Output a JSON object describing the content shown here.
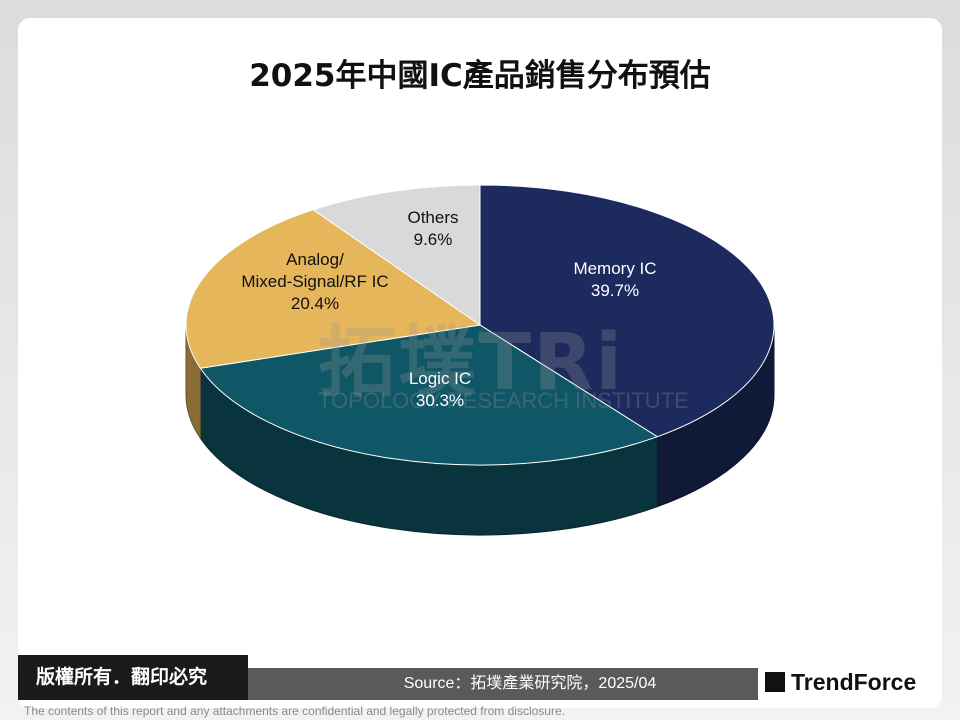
{
  "chart_data": {
    "type": "pie3d",
    "title": "2025年中國IC產品銷售分布預估",
    "categories": [
      "Memory IC",
      "Logic IC",
      "Analog/\nMixed-Signal/RF IC",
      "Others"
    ],
    "values": [
      39.7,
      30.3,
      20.4,
      9.6
    ],
    "value_labels": [
      "39.7%",
      "30.3%",
      "20.4%",
      "9.6%"
    ],
    "colors": [
      "#1c2a5e",
      "#0f5666",
      "#e6b65a",
      "#d9d9d9"
    ]
  },
  "watermark": {
    "logo": "拓墣TRi",
    "name": "TOPOLOGY RESEARCH INSTITUTE"
  },
  "footer": {
    "copyright": "版權所有．翻印必究",
    "source": "Source：拓墣產業研究院，2025/04",
    "brand": "TrendForce",
    "disclaimer": "The contents of this report and any attachments are confidential and legally protected from disclosure."
  }
}
